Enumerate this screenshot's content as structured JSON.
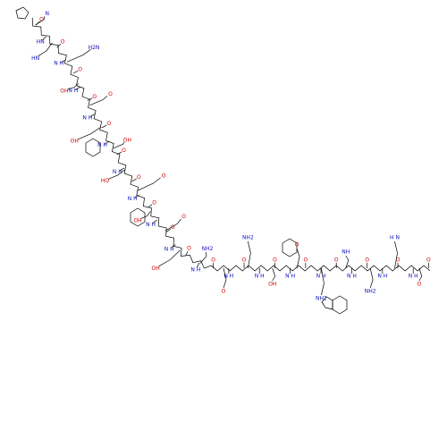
{
  "molecule": {
    "backbone_labels": [
      "O",
      "HN",
      "O",
      "N H",
      "O",
      "N H",
      "O",
      "N H",
      "O",
      "N H",
      "O",
      "N H",
      "O",
      "N H",
      "O",
      "N H",
      "O",
      "N H",
      "O",
      "N H",
      "O",
      "N H",
      "O",
      "N H",
      "O",
      "N H",
      "O",
      "N H",
      "O",
      "N H",
      "O",
      "N H",
      "O",
      "N H",
      "O"
    ],
    "side_chain_labels": [
      "N",
      "HN",
      "H2N",
      "OH",
      "O",
      "OH",
      "OH",
      "HO",
      "O",
      "OH",
      "O",
      "OH",
      "NH2",
      "O",
      "NH2",
      "OH",
      "O",
      "NH2",
      "NH",
      "NH2",
      "H N",
      "O"
    ]
  }
}
